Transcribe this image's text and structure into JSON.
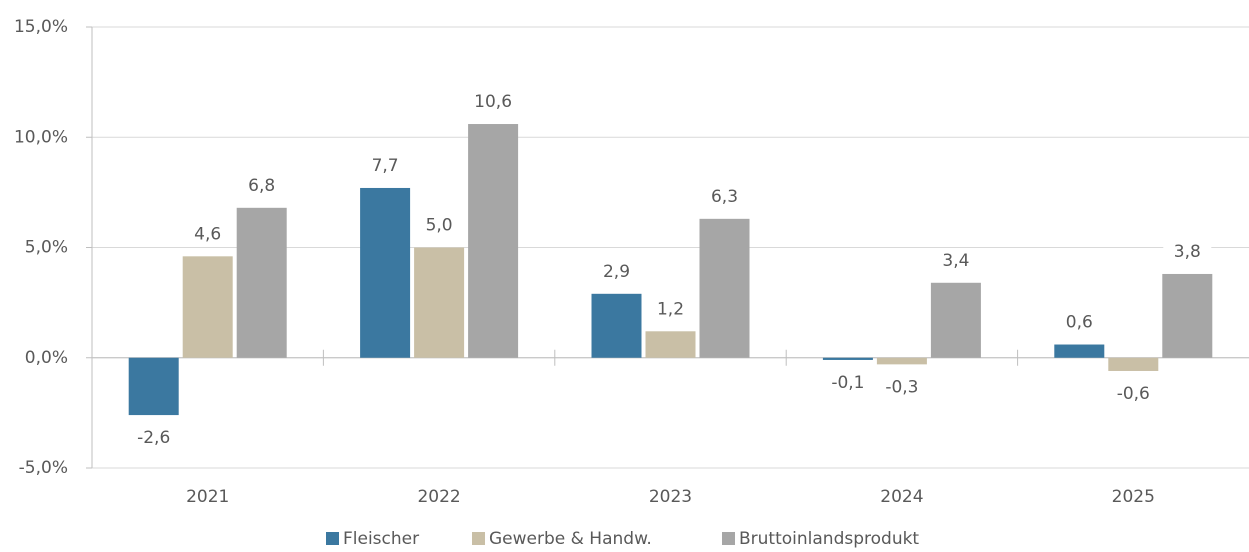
{
  "chart_data": {
    "type": "bar",
    "categories": [
      "2021",
      "2022",
      "2023",
      "2024",
      "2025"
    ],
    "series": [
      {
        "name": "Fleischer",
        "color": "#3b78a0",
        "values": [
          -2.6,
          7.7,
          2.9,
          -0.1,
          0.6
        ],
        "value_labels": [
          "-2,6",
          "7,7",
          "2,9",
          "-0,1",
          "0,6"
        ]
      },
      {
        "name": "Gewerbe & Handw.",
        "color": "#c9bfa6",
        "values": [
          4.6,
          5.0,
          1.2,
          -0.3,
          -0.6
        ],
        "value_labels": [
          "4,6",
          "5,0",
          "1,2",
          "-0,3",
          "-0,6"
        ]
      },
      {
        "name": "Bruttoinlandsprodukt",
        "color": "#a6a6a6",
        "values": [
          6.8,
          10.6,
          6.3,
          3.4,
          3.8
        ],
        "value_labels": [
          "6,8",
          "10,6",
          "6,3",
          "3,4",
          "3,8"
        ]
      }
    ],
    "ylim": [
      -5,
      15
    ],
    "yticks": [
      {
        "value": -5,
        "label": "-5,0%"
      },
      {
        "value": 0,
        "label": "0,0%"
      },
      {
        "value": 5,
        "label": "5,0%"
      },
      {
        "value": 10,
        "label": "10,0%"
      },
      {
        "value": 15,
        "label": "15,0%"
      }
    ],
    "grid": true,
    "legend": "bottom"
  }
}
